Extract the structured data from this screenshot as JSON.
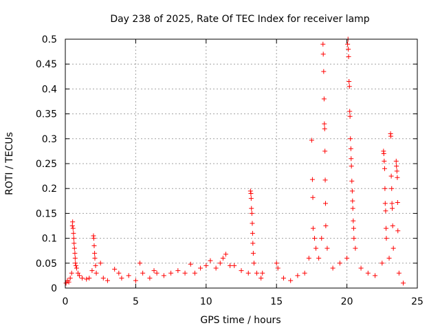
{
  "chart_data": {
    "type": "scatter",
    "title": "Day 238 of 2025, Rate Of TEC Index for receiver lamp",
    "xlabel": "GPS time / hours",
    "ylabel": "ROTI / TECUs",
    "xlim": [
      0,
      25
    ],
    "ylim": [
      0,
      0.5
    ],
    "grid": true,
    "x_ticks": [
      "0",
      "5",
      "10",
      "15",
      "20",
      "25"
    ],
    "y_ticks": [
      "0",
      "0.05",
      "0.1",
      "0.15",
      "0.2",
      "0.25",
      "0.3",
      "0.35",
      "0.4",
      "0.45",
      "0.5"
    ],
    "marker": "plus",
    "color": "#ff0000",
    "series": [
      {
        "name": "ROTI",
        "points": [
          [
            0.05,
            0.01
          ],
          [
            0.15,
            0.015
          ],
          [
            0.25,
            0.012
          ],
          [
            0.35,
            0.02
          ],
          [
            0.45,
            0.03
          ],
          [
            0.5,
            0.125
          ],
          [
            0.52,
            0.133
          ],
          [
            0.55,
            0.12
          ],
          [
            0.58,
            0.11
          ],
          [
            0.6,
            0.1
          ],
          [
            0.62,
            0.09
          ],
          [
            0.65,
            0.08
          ],
          [
            0.68,
            0.07
          ],
          [
            0.7,
            0.06
          ],
          [
            0.72,
            0.05
          ],
          [
            0.75,
            0.045
          ],
          [
            0.8,
            0.04
          ],
          [
            0.9,
            0.03
          ],
          [
            1.0,
            0.025
          ],
          [
            1.2,
            0.02
          ],
          [
            1.5,
            0.018
          ],
          [
            1.7,
            0.02
          ],
          [
            1.9,
            0.035
          ],
          [
            2.0,
            0.105
          ],
          [
            2.02,
            0.1
          ],
          [
            2.05,
            0.085
          ],
          [
            2.08,
            0.07
          ],
          [
            2.1,
            0.06
          ],
          [
            2.15,
            0.045
          ],
          [
            2.2,
            0.03
          ],
          [
            2.5,
            0.05
          ],
          [
            2.7,
            0.02
          ],
          [
            3.0,
            0.015
          ],
          [
            3.5,
            0.038
          ],
          [
            3.8,
            0.03
          ],
          [
            4.0,
            0.02
          ],
          [
            4.5,
            0.025
          ],
          [
            5.0,
            0.015
          ],
          [
            5.3,
            0.05
          ],
          [
            5.5,
            0.03
          ],
          [
            6.0,
            0.02
          ],
          [
            6.3,
            0.035
          ],
          [
            6.5,
            0.03
          ],
          [
            7.0,
            0.025
          ],
          [
            7.5,
            0.03
          ],
          [
            8.0,
            0.035
          ],
          [
            8.5,
            0.03
          ],
          [
            8.9,
            0.048
          ],
          [
            9.2,
            0.03
          ],
          [
            9.6,
            0.04
          ],
          [
            10.0,
            0.045
          ],
          [
            10.3,
            0.055
          ],
          [
            10.7,
            0.04
          ],
          [
            11.0,
            0.05
          ],
          [
            11.2,
            0.06
          ],
          [
            11.4,
            0.068
          ],
          [
            11.7,
            0.045
          ],
          [
            12.0,
            0.045
          ],
          [
            12.5,
            0.035
          ],
          [
            13.0,
            0.03
          ],
          [
            13.15,
            0.195
          ],
          [
            13.18,
            0.19
          ],
          [
            13.2,
            0.18
          ],
          [
            13.22,
            0.16
          ],
          [
            13.25,
            0.15
          ],
          [
            13.28,
            0.13
          ],
          [
            13.3,
            0.11
          ],
          [
            13.32,
            0.09
          ],
          [
            13.35,
            0.07
          ],
          [
            13.4,
            0.05
          ],
          [
            13.6,
            0.03
          ],
          [
            13.9,
            0.02
          ],
          [
            14.0,
            0.03
          ],
          [
            15.0,
            0.05
          ],
          [
            15.1,
            0.04
          ],
          [
            15.5,
            0.02
          ],
          [
            16.0,
            0.015
          ],
          [
            16.5,
            0.025
          ],
          [
            17.0,
            0.03
          ],
          [
            17.3,
            0.06
          ],
          [
            17.5,
            0.297
          ],
          [
            17.55,
            0.218
          ],
          [
            17.58,
            0.182
          ],
          [
            17.6,
            0.12
          ],
          [
            17.7,
            0.1
          ],
          [
            17.8,
            0.08
          ],
          [
            18.0,
            0.06
          ],
          [
            18.2,
            0.1
          ],
          [
            18.3,
            0.49
          ],
          [
            18.32,
            0.47
          ],
          [
            18.35,
            0.435
          ],
          [
            18.38,
            0.38
          ],
          [
            18.4,
            0.33
          ],
          [
            18.42,
            0.32
          ],
          [
            18.44,
            0.275
          ],
          [
            18.46,
            0.217
          ],
          [
            18.48,
            0.17
          ],
          [
            18.5,
            0.125
          ],
          [
            18.6,
            0.08
          ],
          [
            19.0,
            0.04
          ],
          [
            19.5,
            0.05
          ],
          [
            20.0,
            0.06
          ],
          [
            20.05,
            0.49
          ],
          [
            20.08,
            0.5
          ],
          [
            20.1,
            0.48
          ],
          [
            20.12,
            0.465
          ],
          [
            20.15,
            0.415
          ],
          [
            20.18,
            0.405
          ],
          [
            20.2,
            0.355
          ],
          [
            20.22,
            0.345
          ],
          [
            20.25,
            0.3
          ],
          [
            20.28,
            0.28
          ],
          [
            20.3,
            0.26
          ],
          [
            20.32,
            0.245
          ],
          [
            20.35,
            0.215
          ],
          [
            20.38,
            0.195
          ],
          [
            20.4,
            0.175
          ],
          [
            20.42,
            0.16
          ],
          [
            20.45,
            0.135
          ],
          [
            20.48,
            0.12
          ],
          [
            20.5,
            0.1
          ],
          [
            20.6,
            0.08
          ],
          [
            21.0,
            0.04
          ],
          [
            21.5,
            0.03
          ],
          [
            22.0,
            0.025
          ],
          [
            22.5,
            0.05
          ],
          [
            22.6,
            0.275
          ],
          [
            22.62,
            0.27
          ],
          [
            22.65,
            0.255
          ],
          [
            22.68,
            0.24
          ],
          [
            22.7,
            0.2
          ],
          [
            22.72,
            0.17
          ],
          [
            22.75,
            0.155
          ],
          [
            22.78,
            0.12
          ],
          [
            22.8,
            0.1
          ],
          [
            23.0,
            0.06
          ],
          [
            23.1,
            0.31
          ],
          [
            23.12,
            0.305
          ],
          [
            23.15,
            0.225
          ],
          [
            23.18,
            0.2
          ],
          [
            23.2,
            0.17
          ],
          [
            23.22,
            0.16
          ],
          [
            23.25,
            0.125
          ],
          [
            23.3,
            0.08
          ],
          [
            23.5,
            0.255
          ],
          [
            23.52,
            0.245
          ],
          [
            23.55,
            0.235
          ],
          [
            23.58,
            0.222
          ],
          [
            23.6,
            0.172
          ],
          [
            23.62,
            0.115
          ],
          [
            23.7,
            0.03
          ],
          [
            24.0,
            0.01
          ]
        ]
      }
    ]
  }
}
